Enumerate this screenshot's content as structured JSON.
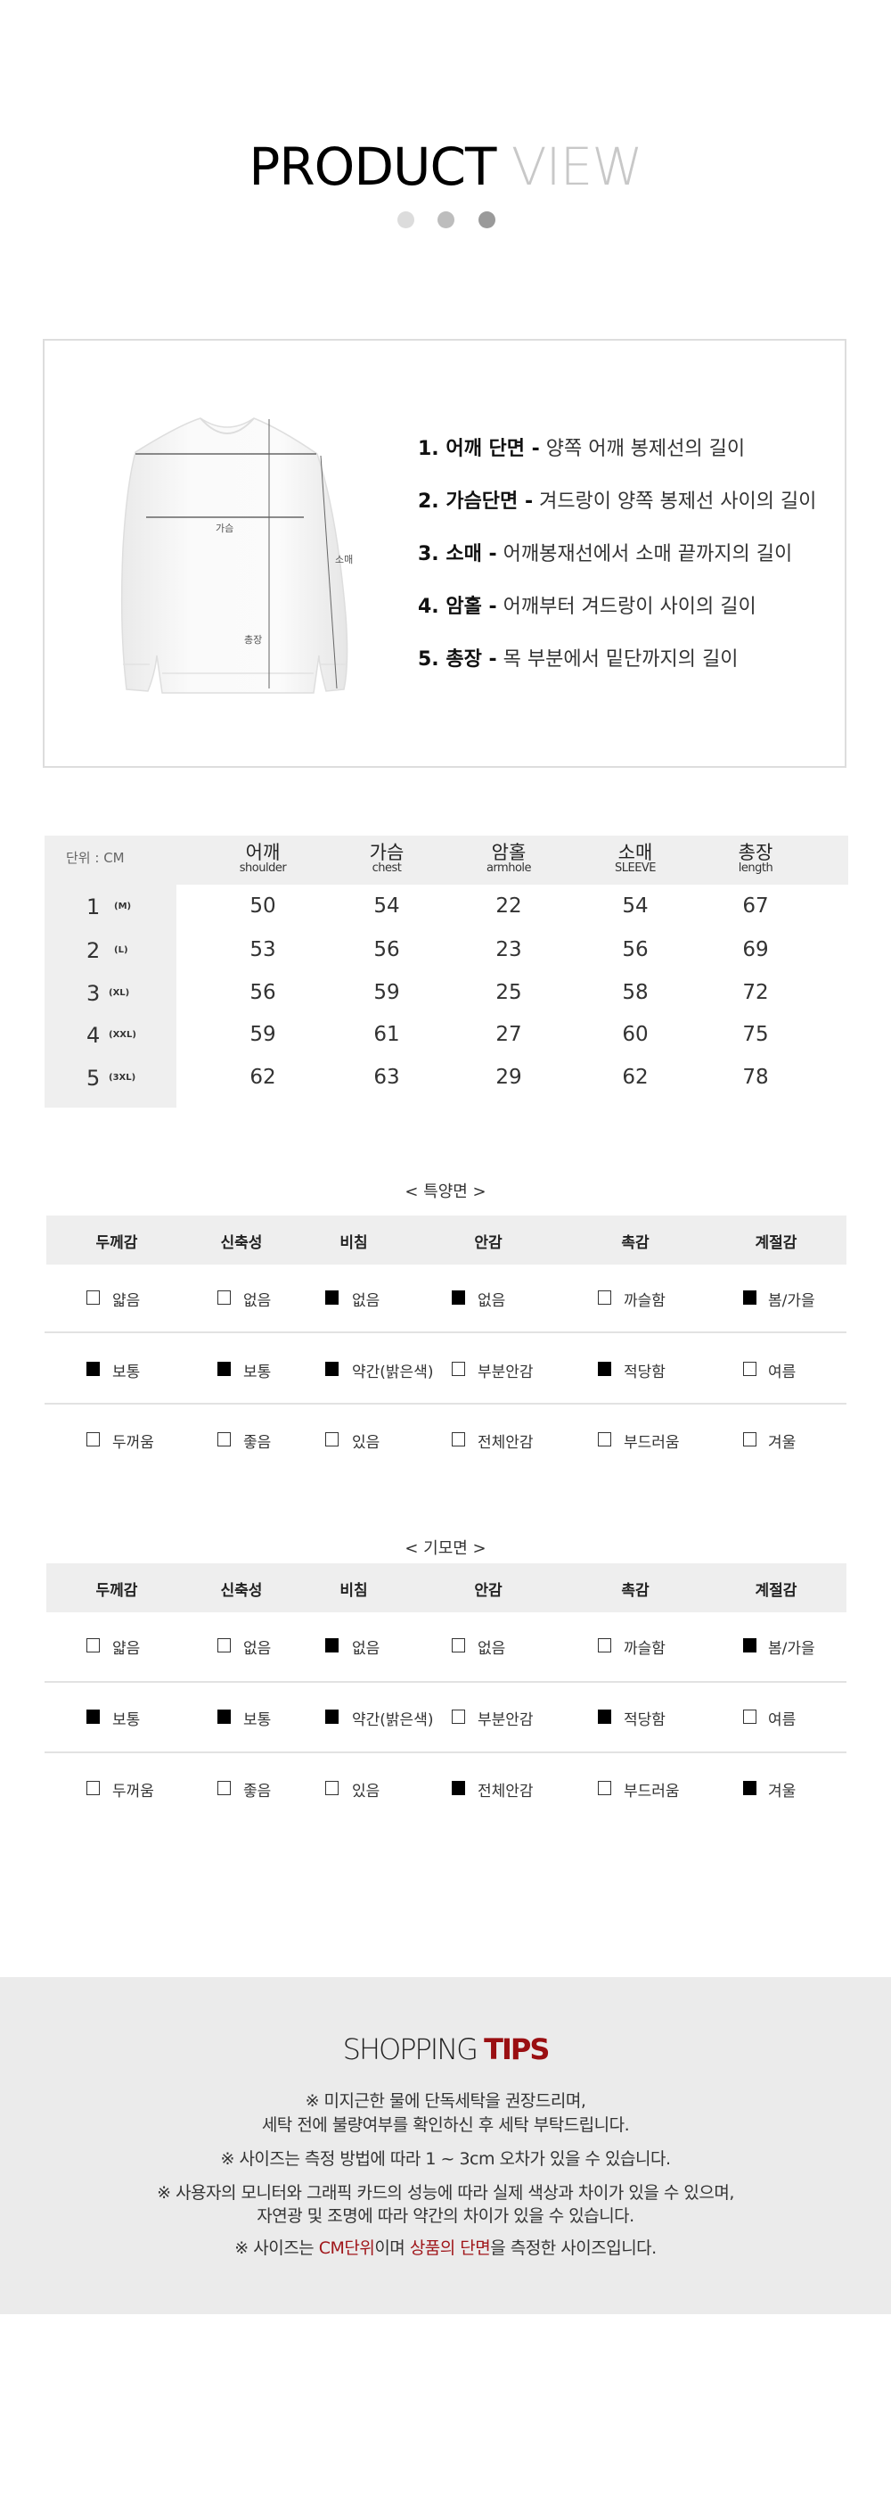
{
  "header": {
    "title_bold": "PRODUCT",
    "title_light": "VIEW",
    "dot_colors": [
      "#dcdcdc",
      "#bdbdbd",
      "#9a9a9a"
    ]
  },
  "guide": {
    "diagram_labels": {
      "chest": "가슴",
      "sleeve": "소매",
      "length": "총장"
    },
    "items": [
      {
        "term": "1. 어깨 단면 -",
        "desc": "양쪽 어깨 봉제선의 길이"
      },
      {
        "term": "2. 가슴단면 -",
        "desc": "겨드랑이 양쪽 봉제선 사이의 길이"
      },
      {
        "term": "3. 소매 -",
        "desc": "어깨봉재선에서 소매 끝까지의 길이"
      },
      {
        "term": "4. 암홀 -",
        "desc": "어깨부터 겨드랑이 사이의 길이"
      },
      {
        "term": "5. 총장 -",
        "desc": "목 부분에서 밑단까지의 길이"
      }
    ]
  },
  "size_table": {
    "unit": "단위 : CM",
    "columns": [
      {
        "ko": "어깨",
        "en": "shoulder"
      },
      {
        "ko": "가슴",
        "en": "chest"
      },
      {
        "ko": "암홀",
        "en": "armhole"
      },
      {
        "ko": "소매",
        "en": "SLEEVE"
      },
      {
        "ko": "총장",
        "en": "length"
      }
    ],
    "rows": [
      {
        "num": "1",
        "size": "(M)",
        "values": [
          "50",
          "54",
          "22",
          "54",
          "67"
        ]
      },
      {
        "num": "2",
        "size": "(L)",
        "values": [
          "53",
          "56",
          "23",
          "56",
          "69"
        ]
      },
      {
        "num": "3",
        "size": "(XL)",
        "values": [
          "56",
          "59",
          "25",
          "58",
          "72"
        ]
      },
      {
        "num": "4",
        "size": "(XXL)",
        "values": [
          "59",
          "61",
          "27",
          "60",
          "75"
        ]
      },
      {
        "num": "5",
        "size": "(3XL)",
        "values": [
          "62",
          "63",
          "29",
          "62",
          "78"
        ]
      }
    ]
  },
  "fabric_tables": [
    {
      "label": "< 특양면 >",
      "headers": [
        "두께감",
        "신축성",
        "비침",
        "안감",
        "촉감",
        "계절감"
      ],
      "rows": [
        [
          {
            "t": "얇음",
            "on": false
          },
          {
            "t": "없음",
            "on": false
          },
          {
            "t": "없음",
            "on": true
          },
          {
            "t": "없음",
            "on": true
          },
          {
            "t": "까슬함",
            "on": false
          },
          {
            "t": "봄/가을",
            "on": true
          }
        ],
        [
          {
            "t": "보통",
            "on": true
          },
          {
            "t": "보통",
            "on": true
          },
          {
            "t": "약간(밝은색)",
            "on": true
          },
          {
            "t": "부분안감",
            "on": false
          },
          {
            "t": "적당함",
            "on": true
          },
          {
            "t": "여름",
            "on": false
          }
        ],
        [
          {
            "t": "두꺼움",
            "on": false
          },
          {
            "t": "좋음",
            "on": false
          },
          {
            "t": "있음",
            "on": false
          },
          {
            "t": "전체안감",
            "on": false
          },
          {
            "t": "부드러움",
            "on": false
          },
          {
            "t": "겨울",
            "on": false
          }
        ]
      ]
    },
    {
      "label": "< 기모면 >",
      "headers": [
        "두께감",
        "신축성",
        "비침",
        "안감",
        "촉감",
        "계절감"
      ],
      "rows": [
        [
          {
            "t": "얇음",
            "on": false
          },
          {
            "t": "없음",
            "on": false
          },
          {
            "t": "없음",
            "on": true
          },
          {
            "t": "없음",
            "on": false
          },
          {
            "t": "까슬함",
            "on": false
          },
          {
            "t": "봄/가을",
            "on": true
          }
        ],
        [
          {
            "t": "보통",
            "on": true
          },
          {
            "t": "보통",
            "on": true
          },
          {
            "t": "약간(밝은색)",
            "on": true
          },
          {
            "t": "부분안감",
            "on": false
          },
          {
            "t": "적당함",
            "on": true
          },
          {
            "t": "여름",
            "on": false
          }
        ],
        [
          {
            "t": "두꺼움",
            "on": false
          },
          {
            "t": "좋음",
            "on": false
          },
          {
            "t": "있음",
            "on": false
          },
          {
            "t": "전체안감",
            "on": true
          },
          {
            "t": "부드러움",
            "on": false
          },
          {
            "t": "겨울",
            "on": true
          }
        ]
      ]
    }
  ],
  "tips": {
    "title_light": "SHOPPING",
    "title_bold": "TIPS",
    "accent_color": "#a0161a",
    "lines": [
      "※ 미지근한 물에 단독세탁을 권장드리며,",
      "세탁 전에 불량여부를 확인하신 후 세탁 부탁드립니다.",
      "※ 사이즈는 측정 방법에 따라 1 ~ 3cm 오차가 있을 수 있습니다.",
      "※ 사용자의 모니터와 그래픽 카드의 성능에 따라 실제 색상과 차이가 있을 수 있으며,",
      "자연광 및 조명에 따라 약간의 차이가 있을 수 있습니다."
    ],
    "last_line": {
      "p1": "※ 사이즈는 ",
      "r1": "CM단위",
      "p2": "이며 ",
      "r2": "상품의 단면",
      "p3": "을 측정한 사이즈입니다."
    }
  }
}
